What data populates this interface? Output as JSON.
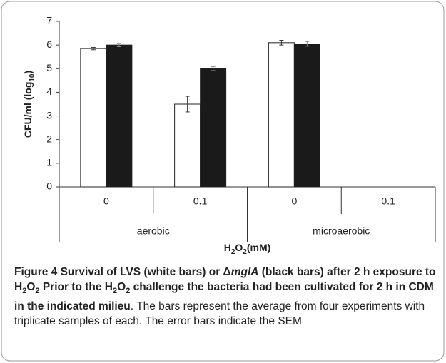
{
  "chart_data": {
    "type": "bar",
    "categories": [
      "0",
      "0.1",
      "0",
      "0.1"
    ],
    "group_labels": [
      "aerobic",
      "microaerobic"
    ],
    "ylabel": [
      "CFU/ml (log",
      "10",
      ")"
    ],
    "xlabel": [
      "H",
      "2",
      "O",
      "2",
      "(mM)"
    ],
    "series": [
      {
        "color": "#ffffff",
        "values": [
          5.85,
          3.5,
          6.1,
          null
        ],
        "errors": [
          0.05,
          0.33,
          0.1,
          null
        ]
      },
      {
        "color": "#1a1a1a",
        "values": [
          6.0,
          5.0,
          6.05,
          null
        ],
        "errors": [
          0.07,
          0.08,
          0.1,
          null
        ]
      }
    ],
    "ylim": [
      0,
      7
    ],
    "yticks": [
      0,
      1,
      2,
      3,
      4,
      5,
      6,
      7
    ],
    "grid": false
  },
  "caption": [
    {
      "text": "Figure 4 Survival of LVS (white bars) or Δ",
      "style": "b"
    },
    {
      "text": "mglA",
      "style": "bi"
    },
    {
      "text": " (black bars) after 2 h exposure to H",
      "style": "b"
    },
    {
      "text": "2",
      "style": "bsub"
    },
    {
      "text": "O",
      "style": "b"
    },
    {
      "text": "2",
      "style": "bsub"
    },
    {
      "text": " Prior to the H",
      "style": "b"
    },
    {
      "text": "2",
      "style": "bsub"
    },
    {
      "text": "O",
      "style": "b"
    },
    {
      "text": "2",
      "style": "bsub"
    },
    {
      "text": " challenge the bacteria had been cultivated for 2 h in CDM in the indicated milieu",
      "style": "b"
    },
    {
      "text": ". The bars represent the average from four experiments with triplicate samples of each. The error bars indicate the SEM",
      "style": "n"
    }
  ]
}
